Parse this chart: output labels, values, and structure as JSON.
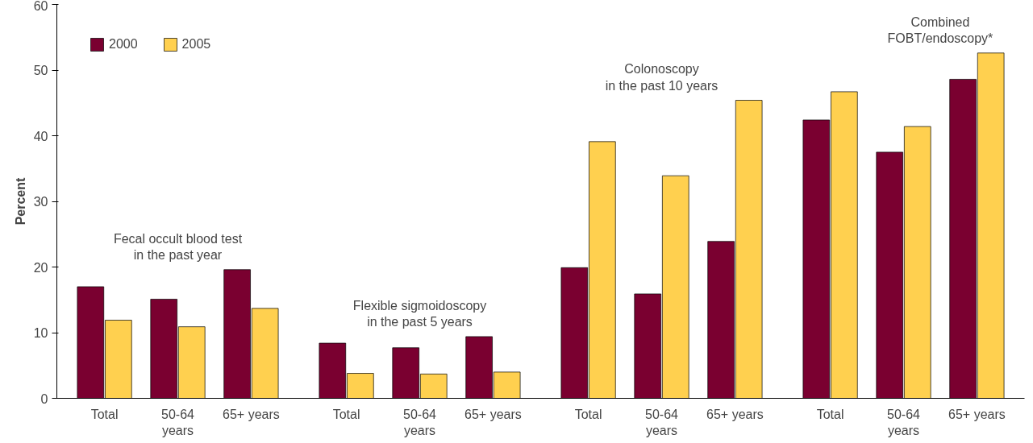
{
  "chart_data": {
    "type": "bar",
    "ylabel": "Percent",
    "categories": [
      "Total",
      "50-64 years",
      "65+ years",
      "Total",
      "50-64 years",
      "65+ years",
      "Total",
      "50-64 years",
      "65+ years",
      "Total",
      "50-64 years",
      "65+ years"
    ],
    "series": [
      {
        "name": "2000",
        "color": "#7a0030",
        "values": [
          17.0,
          15.1,
          19.6,
          8.4,
          7.7,
          9.4,
          19.9,
          15.9,
          23.9,
          42.4,
          37.5,
          48.6
        ]
      },
      {
        "name": "2005",
        "color": "#ffd04f",
        "values": [
          11.9,
          10.9,
          13.7,
          3.8,
          3.7,
          4.0,
          39.1,
          33.9,
          45.4,
          46.7,
          41.4,
          52.6
        ]
      }
    ],
    "annotations": [
      "Fecal occult blood test\nin the past year",
      "Flexible sigmoidoscopy\nin the past 5 years",
      "Colonoscopy\nin the past 10 years",
      "Combined\nFOBT/endoscopy*"
    ],
    "ylim": [
      0,
      60
    ],
    "yticks": [
      0,
      10,
      20,
      30,
      40,
      50,
      60
    ],
    "grid": false,
    "legend": "top left"
  }
}
